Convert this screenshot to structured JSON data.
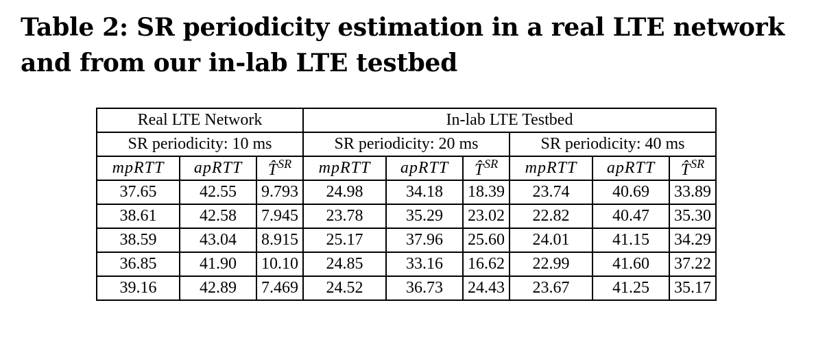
{
  "caption": "Table 2: SR periodicity estimation in a real LTE network and from our in-lab LTE testbed",
  "table": {
    "groups": [
      "Real LTE Network",
      "In-lab LTE Testbed"
    ],
    "subgroups": [
      "SR periodicity: 10 ms",
      "SR periodicity: 20 ms",
      "SR periodicity: 40 ms"
    ],
    "col_headers": {
      "mprtt": "mpRTT",
      "aprtt": "apRTT",
      "t_hat": "T̂",
      "t_hat_sup": "SR"
    },
    "rows": [
      [
        "37.65",
        "42.55",
        "9.793",
        "24.98",
        "34.18",
        "18.39",
        "23.74",
        "40.69",
        "33.89"
      ],
      [
        "38.61",
        "42.58",
        "7.945",
        "23.78",
        "35.29",
        "23.02",
        "22.82",
        "40.47",
        "35.30"
      ],
      [
        "38.59",
        "43.04",
        "8.915",
        "25.17",
        "37.96",
        "25.60",
        "24.01",
        "41.15",
        "34.29"
      ],
      [
        "36.85",
        "41.90",
        "10.10",
        "24.85",
        "33.16",
        "16.62",
        "22.99",
        "41.60",
        "37.22"
      ],
      [
        "39.16",
        "42.89",
        "7.469",
        "24.52",
        "36.73",
        "24.43",
        "23.67",
        "41.25",
        "35.17"
      ]
    ]
  }
}
